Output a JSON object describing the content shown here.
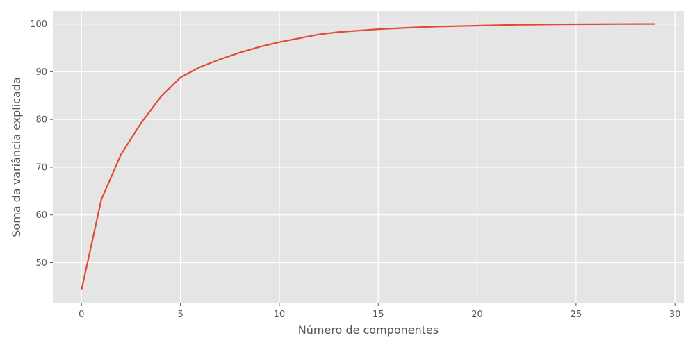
{
  "chart_data": {
    "type": "line",
    "title": "",
    "xlabel": "Número de componentes",
    "ylabel": "Soma da variância explicada",
    "xlim": [
      -1.45,
      30.45
    ],
    "ylim": [
      41.5,
      102.7
    ],
    "xticks": [
      0,
      5,
      10,
      15,
      20,
      25,
      30
    ],
    "yticks": [
      50,
      60,
      70,
      80,
      90,
      100
    ],
    "grid": true,
    "style": {
      "background": "#e5e5e5",
      "grid_color": "#ffffff",
      "line_color": "#e24a33"
    },
    "series": [
      {
        "x": [
          0,
          1,
          2,
          3,
          4,
          5,
          6,
          7,
          8,
          9,
          10,
          11,
          12,
          13,
          14,
          15,
          16,
          17,
          18,
          19,
          20,
          21,
          22,
          23,
          24,
          25,
          26,
          27,
          28,
          29
        ],
        "values": [
          44.3,
          63.2,
          72.7,
          79.2,
          84.7,
          88.8,
          91.0,
          92.6,
          94.0,
          95.2,
          96.2,
          97.0,
          97.8,
          98.3,
          98.6,
          98.9,
          99.1,
          99.3,
          99.45,
          99.55,
          99.65,
          99.75,
          99.82,
          99.87,
          99.91,
          99.94,
          99.96,
          99.98,
          99.99,
          100.0
        ]
      }
    ]
  }
}
